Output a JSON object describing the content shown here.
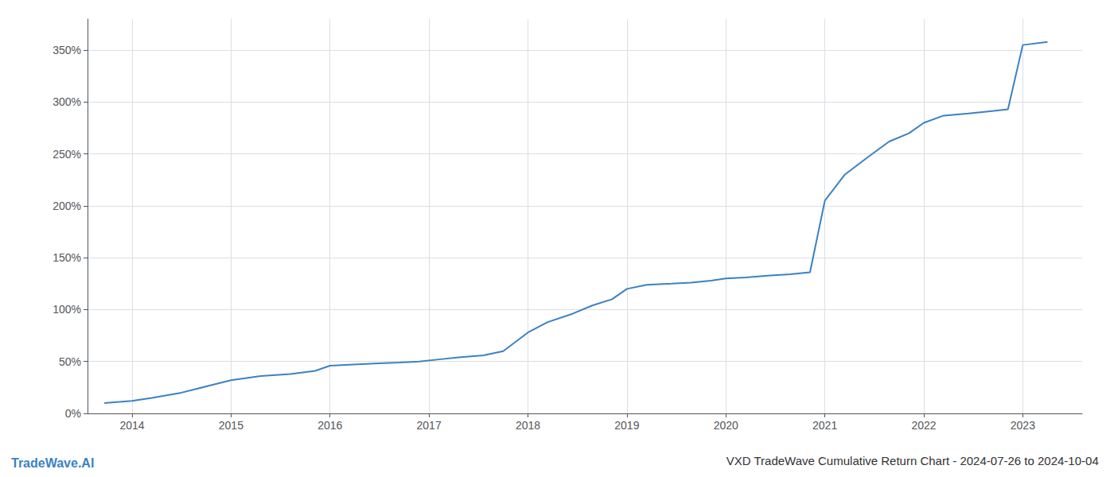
{
  "chart_data": {
    "type": "line",
    "title": "VXD TradeWave Cumulative Return Chart - 2024-07-26 to 2024-10-04",
    "annotations": [
      "TradeWave.AI"
    ],
    "x": [
      2013.72,
      2014.0,
      2014.2,
      2014.5,
      2014.75,
      2015.0,
      2015.3,
      2015.6,
      2015.85,
      2016.0,
      2016.2,
      2016.45,
      2016.7,
      2016.9,
      2017.1,
      2017.3,
      2017.55,
      2017.75,
      2018.0,
      2018.2,
      2018.45,
      2018.65,
      2018.85,
      2019.0,
      2019.2,
      2019.45,
      2019.65,
      2019.85,
      2020.0,
      2020.2,
      2020.45,
      2020.65,
      2020.85,
      2021.0,
      2021.2,
      2021.45,
      2021.65,
      2021.85,
      2022.0,
      2022.2,
      2022.45,
      2022.65,
      2022.85,
      2023.0,
      2023.25
    ],
    "values": [
      10,
      12,
      15,
      20,
      26,
      32,
      36,
      38,
      41,
      46,
      47,
      48,
      49,
      50,
      52,
      54,
      56,
      60,
      78,
      88,
      96,
      104,
      110,
      120,
      124,
      125,
      126,
      128,
      130,
      131,
      133,
      134,
      136,
      205,
      230,
      248,
      262,
      270,
      280,
      287,
      289,
      291,
      293,
      355,
      358
    ],
    "color": "#3a82c4",
    "xlim": [
      2013.55,
      2023.6
    ],
    "ylim": [
      0,
      380
    ],
    "xticks": [
      2014,
      2015,
      2016,
      2017,
      2018,
      2019,
      2020,
      2021,
      2022,
      2023
    ],
    "yticks": [
      {
        "value": 0,
        "label": "0%"
      },
      {
        "value": 50,
        "label": "50%"
      },
      {
        "value": 100,
        "label": "100%"
      },
      {
        "value": 150,
        "label": "150%"
      },
      {
        "value": 200,
        "label": "200%"
      },
      {
        "value": 250,
        "label": "250%"
      },
      {
        "value": 300,
        "label": "300%"
      },
      {
        "value": 350,
        "label": "350%"
      }
    ],
    "grid": true
  }
}
